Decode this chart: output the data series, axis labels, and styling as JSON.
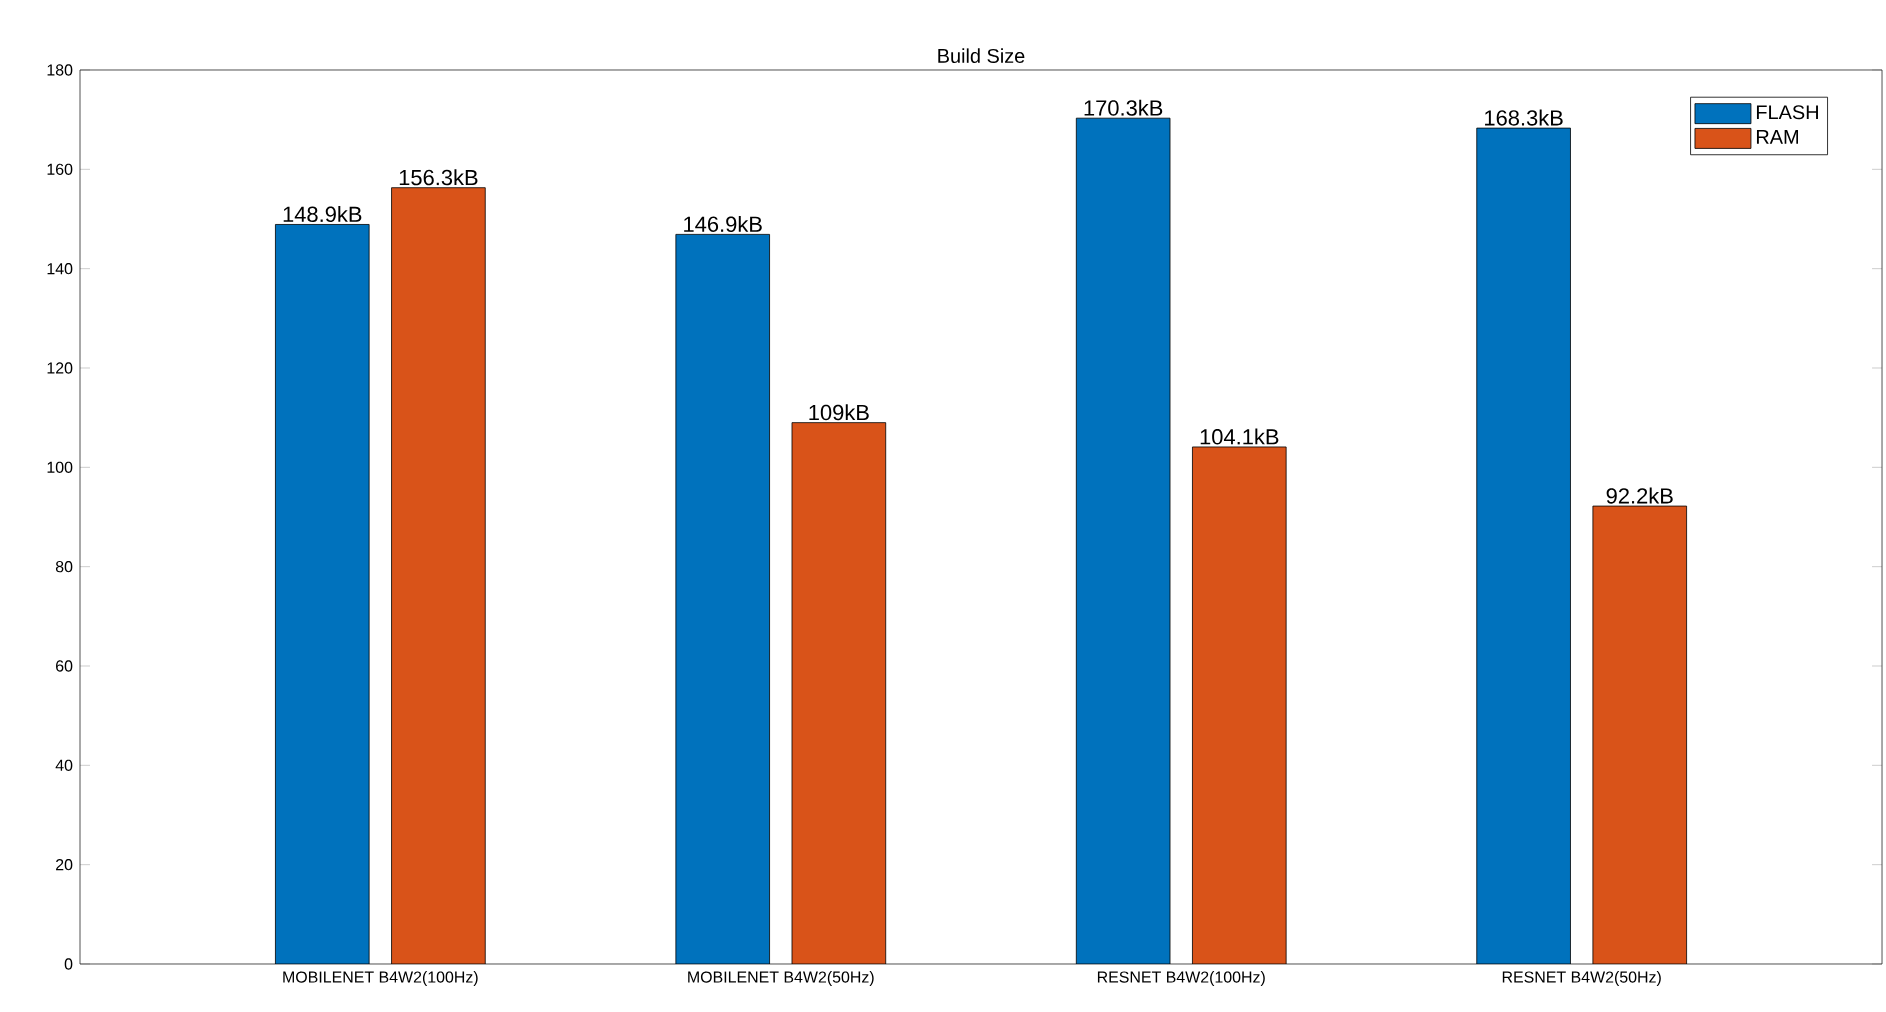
{
  "chart_data": {
    "type": "bar",
    "title": "Build Size",
    "categories": [
      "MOBILENET B4W2(100Hz)",
      "MOBILENET B4W2(50Hz)",
      "RESNET B4W2(100Hz)",
      "RESNET B4W2(50Hz)"
    ],
    "series": [
      {
        "name": "FLASH",
        "color": "#0072bd",
        "values": [
          148.9,
          146.9,
          170.3,
          168.3
        ],
        "value_labels": [
          "148.9kB",
          "146.9kB",
          "170.3kB",
          "168.3kB"
        ]
      },
      {
        "name": "RAM",
        "color": "#d95319",
        "values": [
          156.3,
          109,
          104.1,
          92.2
        ],
        "value_labels": [
          "156.3kB",
          "109kB",
          "104.1kB",
          "92.2kB"
        ]
      }
    ],
    "ylim": [
      0,
      180
    ],
    "yticks": [
      0,
      20,
      40,
      60,
      80,
      100,
      120,
      140,
      160,
      180
    ],
    "grid": false,
    "legend": "top right"
  }
}
